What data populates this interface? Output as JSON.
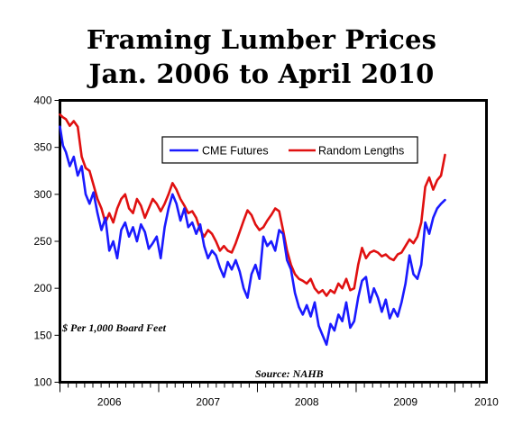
{
  "title_line1": "Framing Lumber Prices",
  "title_line2": "Jan. 2006 to April 2010",
  "chart_data": {
    "type": "line",
    "title": "Framing Lumber Prices Jan. 2006 to April 2010",
    "unit_note": "$ Per 1,000 Board Feet",
    "source": "Source: NAHB",
    "ylim": [
      100,
      400
    ],
    "yticks": [
      "100",
      "150",
      "200",
      "250",
      "300",
      "350",
      "400"
    ],
    "xlim": [
      2006.0,
      2010.32
    ],
    "xtick_labels": [
      "2006",
      "2007",
      "2008",
      "2009",
      "2010"
    ],
    "grid": false,
    "legend_position": "top-center",
    "series": [
      {
        "name": "CME Futures",
        "color": "#1a1aff",
        "points": [
          [
            2006.0,
            372
          ],
          [
            2006.03,
            352
          ],
          [
            2006.06,
            345
          ],
          [
            2006.1,
            330
          ],
          [
            2006.14,
            340
          ],
          [
            2006.18,
            320
          ],
          [
            2006.22,
            330
          ],
          [
            2006.26,
            300
          ],
          [
            2006.3,
            290
          ],
          [
            2006.34,
            302
          ],
          [
            2006.38,
            280
          ],
          [
            2006.42,
            262
          ],
          [
            2006.46,
            275
          ],
          [
            2006.5,
            240
          ],
          [
            2006.54,
            250
          ],
          [
            2006.58,
            232
          ],
          [
            2006.62,
            262
          ],
          [
            2006.66,
            270
          ],
          [
            2006.7,
            255
          ],
          [
            2006.74,
            265
          ],
          [
            2006.78,
            250
          ],
          [
            2006.82,
            268
          ],
          [
            2006.86,
            260
          ],
          [
            2006.9,
            242
          ],
          [
            2006.94,
            248
          ],
          [
            2006.98,
            255
          ],
          [
            2007.02,
            232
          ],
          [
            2007.06,
            265
          ],
          [
            2007.1,
            285
          ],
          [
            2007.14,
            300
          ],
          [
            2007.18,
            290
          ],
          [
            2007.22,
            272
          ],
          [
            2007.26,
            285
          ],
          [
            2007.3,
            265
          ],
          [
            2007.34,
            270
          ],
          [
            2007.38,
            258
          ],
          [
            2007.42,
            268
          ],
          [
            2007.46,
            245
          ],
          [
            2007.5,
            232
          ],
          [
            2007.54,
            240
          ],
          [
            2007.58,
            235
          ],
          [
            2007.62,
            222
          ],
          [
            2007.66,
            212
          ],
          [
            2007.7,
            228
          ],
          [
            2007.74,
            220
          ],
          [
            2007.78,
            230
          ],
          [
            2007.82,
            218
          ],
          [
            2007.86,
            200
          ],
          [
            2007.9,
            190
          ],
          [
            2007.94,
            215
          ],
          [
            2007.98,
            225
          ],
          [
            2008.02,
            210
          ],
          [
            2008.06,
            255
          ],
          [
            2008.1,
            245
          ],
          [
            2008.14,
            250
          ],
          [
            2008.18,
            240
          ],
          [
            2008.22,
            262
          ],
          [
            2008.26,
            258
          ],
          [
            2008.3,
            230
          ],
          [
            2008.34,
            220
          ],
          [
            2008.38,
            195
          ],
          [
            2008.42,
            180
          ],
          [
            2008.46,
            172
          ],
          [
            2008.5,
            182
          ],
          [
            2008.54,
            170
          ],
          [
            2008.58,
            185
          ],
          [
            2008.62,
            160
          ],
          [
            2008.66,
            150
          ],
          [
            2008.7,
            140
          ],
          [
            2008.74,
            162
          ],
          [
            2008.78,
            155
          ],
          [
            2008.82,
            172
          ],
          [
            2008.86,
            165
          ],
          [
            2008.9,
            185
          ],
          [
            2008.94,
            158
          ],
          [
            2008.98,
            165
          ],
          [
            2009.02,
            190
          ],
          [
            2009.06,
            208
          ],
          [
            2009.1,
            212
          ],
          [
            2009.14,
            185
          ],
          [
            2009.18,
            200
          ],
          [
            2009.22,
            190
          ],
          [
            2009.26,
            175
          ],
          [
            2009.3,
            188
          ],
          [
            2009.34,
            168
          ],
          [
            2009.38,
            178
          ],
          [
            2009.42,
            170
          ],
          [
            2009.46,
            185
          ],
          [
            2009.5,
            205
          ],
          [
            2009.54,
            235
          ],
          [
            2009.58,
            215
          ],
          [
            2009.62,
            210
          ],
          [
            2009.66,
            225
          ],
          [
            2009.7,
            270
          ],
          [
            2009.74,
            258
          ],
          [
            2009.78,
            275
          ],
          [
            2009.82,
            285
          ],
          [
            2009.86,
            290
          ],
          [
            2009.9,
            294
          ]
        ]
      },
      {
        "name": "Random Lengths",
        "color": "#e01010",
        "points": [
          [
            2006.0,
            385
          ],
          [
            2006.03,
            382
          ],
          [
            2006.06,
            380
          ],
          [
            2006.1,
            373
          ],
          [
            2006.14,
            378
          ],
          [
            2006.18,
            372
          ],
          [
            2006.22,
            340
          ],
          [
            2006.26,
            328
          ],
          [
            2006.3,
            325
          ],
          [
            2006.34,
            310
          ],
          [
            2006.38,
            295
          ],
          [
            2006.42,
            285
          ],
          [
            2006.46,
            270
          ],
          [
            2006.5,
            280
          ],
          [
            2006.54,
            270
          ],
          [
            2006.58,
            285
          ],
          [
            2006.62,
            295
          ],
          [
            2006.66,
            300
          ],
          [
            2006.7,
            285
          ],
          [
            2006.74,
            280
          ],
          [
            2006.78,
            295
          ],
          [
            2006.82,
            288
          ],
          [
            2006.86,
            275
          ],
          [
            2006.9,
            285
          ],
          [
            2006.94,
            295
          ],
          [
            2006.98,
            290
          ],
          [
            2007.02,
            282
          ],
          [
            2007.06,
            290
          ],
          [
            2007.1,
            300
          ],
          [
            2007.14,
            312
          ],
          [
            2007.18,
            305
          ],
          [
            2007.22,
            295
          ],
          [
            2007.26,
            288
          ],
          [
            2007.3,
            280
          ],
          [
            2007.34,
            282
          ],
          [
            2007.38,
            275
          ],
          [
            2007.42,
            262
          ],
          [
            2007.46,
            255
          ],
          [
            2007.5,
            262
          ],
          [
            2007.54,
            258
          ],
          [
            2007.58,
            250
          ],
          [
            2007.62,
            240
          ],
          [
            2007.66,
            245
          ],
          [
            2007.7,
            240
          ],
          [
            2007.74,
            238
          ],
          [
            2007.78,
            248
          ],
          [
            2007.82,
            260
          ],
          [
            2007.86,
            272
          ],
          [
            2007.9,
            283
          ],
          [
            2007.94,
            278
          ],
          [
            2007.98,
            268
          ],
          [
            2008.02,
            262
          ],
          [
            2008.06,
            265
          ],
          [
            2008.1,
            272
          ],
          [
            2008.14,
            278
          ],
          [
            2008.18,
            285
          ],
          [
            2008.22,
            282
          ],
          [
            2008.26,
            262
          ],
          [
            2008.3,
            240
          ],
          [
            2008.34,
            225
          ],
          [
            2008.38,
            215
          ],
          [
            2008.42,
            210
          ],
          [
            2008.46,
            208
          ],
          [
            2008.5,
            205
          ],
          [
            2008.54,
            210
          ],
          [
            2008.58,
            200
          ],
          [
            2008.62,
            195
          ],
          [
            2008.66,
            198
          ],
          [
            2008.7,
            192
          ],
          [
            2008.74,
            198
          ],
          [
            2008.78,
            195
          ],
          [
            2008.82,
            205
          ],
          [
            2008.86,
            200
          ],
          [
            2008.9,
            210
          ],
          [
            2008.94,
            198
          ],
          [
            2008.98,
            200
          ],
          [
            2009.02,
            225
          ],
          [
            2009.06,
            243
          ],
          [
            2009.1,
            232
          ],
          [
            2009.14,
            238
          ],
          [
            2009.18,
            240
          ],
          [
            2009.22,
            238
          ],
          [
            2009.26,
            234
          ],
          [
            2009.3,
            236
          ],
          [
            2009.34,
            232
          ],
          [
            2009.38,
            230
          ],
          [
            2009.42,
            236
          ],
          [
            2009.46,
            238
          ],
          [
            2009.5,
            245
          ],
          [
            2009.54,
            252
          ],
          [
            2009.58,
            248
          ],
          [
            2009.62,
            255
          ],
          [
            2009.66,
            270
          ],
          [
            2009.7,
            308
          ],
          [
            2009.74,
            318
          ],
          [
            2009.78,
            305
          ],
          [
            2009.82,
            315
          ],
          [
            2009.86,
            320
          ],
          [
            2009.9,
            342
          ]
        ]
      }
    ]
  }
}
